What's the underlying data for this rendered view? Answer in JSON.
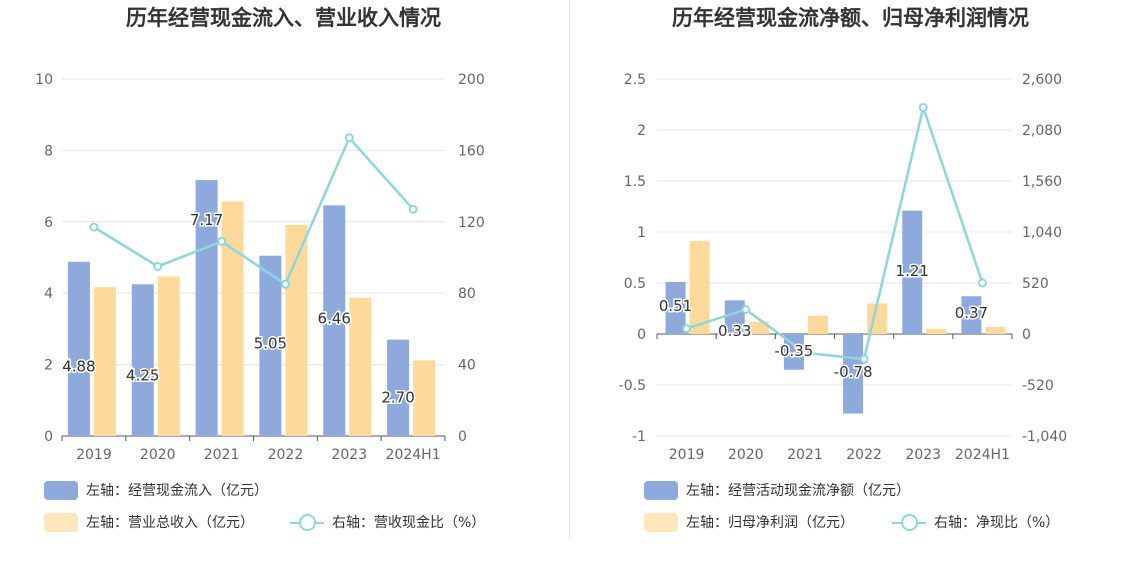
{
  "chart_data": [
    {
      "type": "bar",
      "title": "历年经营现金流入、营业收入情况",
      "categories": [
        "2019",
        "2020",
        "2021",
        "2022",
        "2023",
        "2024H1"
      ],
      "left_axis": {
        "ylim": [
          0,
          10
        ],
        "ticks": [
          "0",
          "2",
          "4",
          "6",
          "8",
          "10"
        ]
      },
      "right_axis": {
        "ylim": [
          0,
          200
        ],
        "ticks": [
          "0",
          "40",
          "80",
          "120",
          "160",
          "200"
        ]
      },
      "series": [
        {
          "name": "左轴：经营现金流入（亿元）",
          "kind": "bar",
          "axis": "left",
          "color": "#8eaadc",
          "values": [
            4.88,
            4.25,
            7.17,
            5.05,
            6.46,
            2.7
          ],
          "labels": [
            "4.88",
            "4.25",
            "7.17",
            "5.05",
            "6.46",
            "2.70"
          ]
        },
        {
          "name": "左轴：营业总收入（亿元）",
          "kind": "bar",
          "axis": "left",
          "color": "#fdd99b",
          "values": [
            4.17,
            4.47,
            6.57,
            5.91,
            3.87,
            2.12
          ]
        },
        {
          "name": "右轴：营收现金比（%）",
          "kind": "line",
          "axis": "right",
          "color": "#8dd6dc",
          "values": [
            117,
            95,
            109,
            85,
            167,
            127
          ]
        }
      ],
      "grid": true,
      "legend_position": "bottom-left"
    },
    {
      "type": "bar",
      "title": "历年经营现金流净额、归母净利润情况",
      "categories": [
        "2019",
        "2020",
        "2021",
        "2022",
        "2023",
        "2024H1"
      ],
      "left_axis": {
        "ylim": [
          -1,
          2.5
        ],
        "ticks": [
          "-1",
          "-0.5",
          "0",
          "0.5",
          "1",
          "1.5",
          "2",
          "2.5"
        ]
      },
      "right_axis": {
        "ylim": [
          -1040,
          2600
        ],
        "ticks": [
          "-1,040",
          "-520",
          "0",
          "520",
          "1,040",
          "1,560",
          "2,080",
          "2,600"
        ]
      },
      "series": [
        {
          "name": "左轴：经营活动现金流净额（亿元）",
          "kind": "bar",
          "axis": "left",
          "color": "#8eaadc",
          "values": [
            0.51,
            0.33,
            -0.35,
            -0.78,
            1.21,
            0.37
          ],
          "labels": [
            "0.51",
            "0.33",
            "-0.35",
            "-0.78",
            "1.21",
            "0.37"
          ]
        },
        {
          "name": "左轴：归母净利润（亿元）",
          "kind": "bar",
          "axis": "left",
          "color": "#fdd99b",
          "values": [
            0.91,
            0.12,
            0.18,
            0.3,
            0.05,
            0.07
          ]
        },
        {
          "name": "右轴：净现比（%）",
          "kind": "line",
          "axis": "right",
          "color": "#8dd6dc",
          "values": [
            55,
            250,
            -190,
            -257,
            2310,
            520
          ]
        }
      ],
      "grid": true,
      "legend_position": "bottom-left"
    }
  ]
}
